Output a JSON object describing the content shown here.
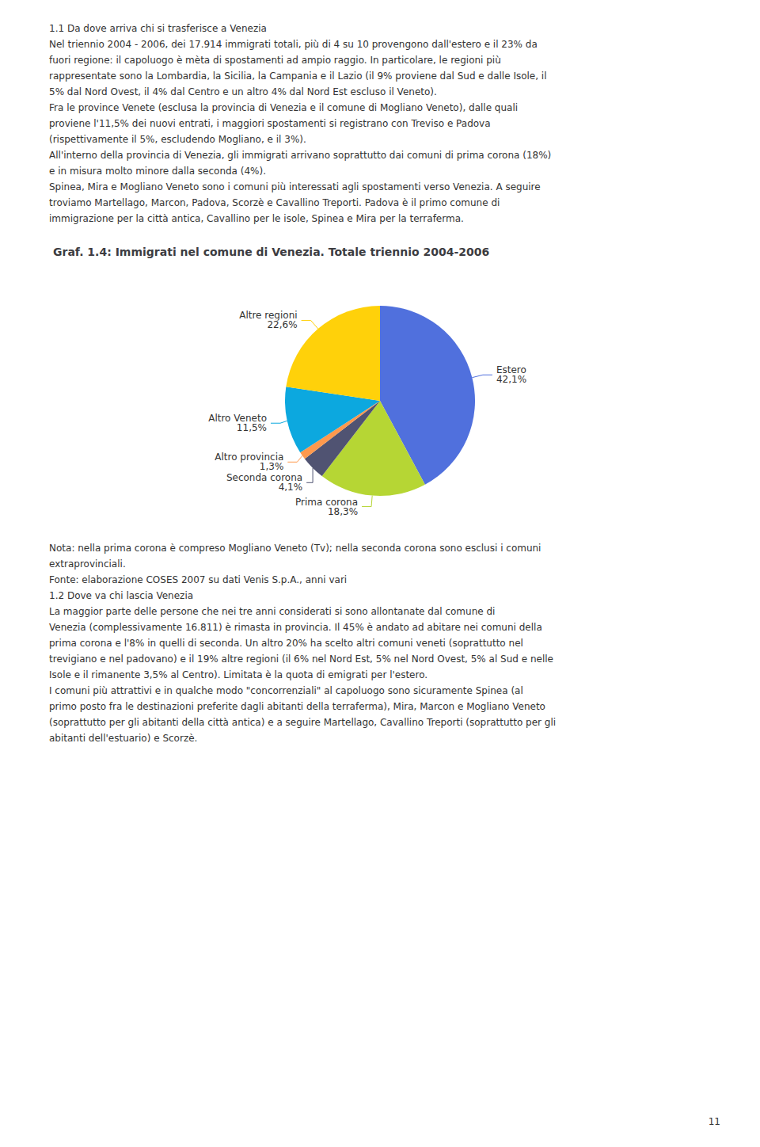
{
  "chart_data": {
    "type": "pie",
    "title": "Graf. 1.4: Immigrati nel comune di Venezia. Totale triennio 2004-2006",
    "categories": [
      "Estero",
      "Prima corona",
      "Seconda corona",
      "Altro provincia",
      "Altro Veneto",
      "Altre regioni"
    ],
    "values": [
      42.1,
      18.3,
      4.1,
      1.3,
      11.5,
      22.6
    ],
    "value_labels": [
      "42,1%",
      "18,3%",
      "4,1%",
      "1,3%",
      "11,5%",
      "22,6%"
    ],
    "data_labels": true,
    "annotations": [
      [
        "1.1 Da dove arriva chi si trasferisce a Venezia",
        "Nel triennio 2004 - 2006, dei 17.914 immigrati totali, più di 4 su 10 provengono dall'estero e il 23% da",
        "fuori regione: il capoluogo è mèta di spostamenti ad ampio raggio. In particolare, le regioni più",
        "rappresentate sono la Lombardia, la Sicilia, la Campania e il Lazio (il 9% proviene dal Sud e dalle Isole, il",
        "5% dal Nord Ovest, il 4% dal Centro e un altro 4% dal Nord Est escluso il Veneto).",
        "Fra le province Venete (esclusa la provincia di Venezia e il comune di Mogliano Veneto), dalle quali",
        "proviene l'11,5% dei nuovi entrati, i maggiori spostamenti si registrano con Treviso e Padova",
        "(rispettivamente il 5%, escludendo Mogliano, e il 3%).",
        "All'interno della provincia di Venezia, gli immigrati arrivano soprattutto dai comuni di prima corona (18%)",
        "e in misura molto minore dalla seconda (4%).",
        "Spinea, Mira e Mogliano Veneto sono i comuni più interessati agli spostamenti verso Venezia. A seguire",
        "troviamo Martellago, Marcon, Padova, Scorzè e Cavallino Treporti. Padova è il primo comune di",
        "immigrazione per la città antica, Cavallino per le isole, Spinea e Mira per la terraferma."
      ],
      [
        "Nota: nella prima corona è compreso Mogliano Veneto (Tv); nella seconda corona sono esclusi i comuni",
        "extraprovinciali.",
        "Fonte: elaborazione COSES 2007 su dati Venis S.p.A., anni vari",
        "1.2 Dove va chi lascia Venezia",
        "La maggior parte delle persone che nei tre anni considerati si sono allontanate dal comune di",
        "Venezia (complessivamente 16.811) è rimasta in provincia. Il 45% è andato ad abitare nei comuni della",
        "prima corona e l'8% in quelli di seconda. Un altro 20% ha scelto altri comuni veneti (soprattutto nel",
        "trevigiano e nel padovano) e il 19% altre regioni (il 6% nel Nord Est, 5% nel Nord Ovest, 5% al Sud e nelle",
        "Isole e il rimanente 3,5% al Centro). Limitata è la quota di emigrati per l'estero.",
        "I comuni più attrattivi e in qualche modo \"concorrenziali\" al capoluogo sono sicuramente Spinea (al",
        "primo posto fra le destinazioni preferite dagli abitanti della terraferma), Mira, Marcon e Mogliano Veneto",
        "(soprattutto per gli abitanti della città antica) e a seguire Martellago, Cavallino Treporti (soprattutto per gli",
        "abitanti dell'estuario) e Scorzè."
      ],
      [
        "11"
      ]
    ]
  }
}
